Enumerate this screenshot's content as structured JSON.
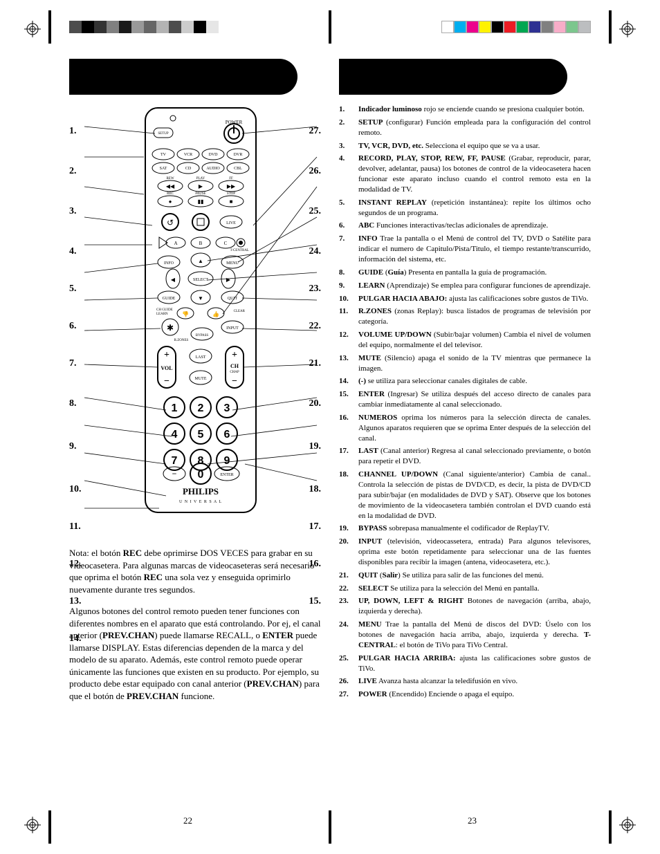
{
  "reg_colors_left": [
    "#4d4d4d",
    "#000000",
    "#333333",
    "#808080",
    "#1a1a1a",
    "#999999",
    "#666666",
    "#b3b3b3",
    "#4d4d4d",
    "#cccccc",
    "#000000",
    "#e6e6e6"
  ],
  "reg_colors_right": [
    "#ffffff",
    "#00aeef",
    "#ec008c",
    "#fff200",
    "#000000",
    "#ed1c24",
    "#00a651",
    "#2e3192",
    "#808080",
    "#f7adc8",
    "#7cc68d",
    "#bcbec0"
  ],
  "left_numbers": [
    "1.",
    "2.",
    "3.",
    "4.",
    "5.",
    "6.",
    "7.",
    "8.",
    "9.",
    "10.",
    "11.",
    "12.",
    "13.",
    "14."
  ],
  "left_gaps": [
    26,
    44,
    44,
    44,
    40,
    40,
    40,
    44,
    48,
    48,
    40,
    40,
    40,
    40
  ],
  "right_numbers": [
    "27.",
    "26.",
    "25.",
    "24.",
    "23.",
    "22.",
    "21.",
    "20.",
    "19.",
    "18.",
    "17.",
    "16.",
    "15."
  ],
  "right_gaps": [
    26,
    44,
    44,
    44,
    40,
    40,
    40,
    44,
    48,
    48,
    40,
    40,
    40
  ],
  "remote": {
    "brand": "PHILIPS",
    "sub": "U N I V E R S A L",
    "power": "POWER",
    "row2": [
      "TV",
      "VCR",
      "DVD",
      "DVR"
    ],
    "row3": [
      "SAT",
      "CD",
      "AUDIO",
      "CBL"
    ],
    "trans_top": [
      "REW",
      "PLAY",
      "FF"
    ],
    "trans_bot": [
      "REC",
      "PAUSE",
      "STOP"
    ],
    "replay_row": [
      "↺",
      "■",
      "LIVE"
    ],
    "abc_row": [
      "A",
      "B",
      "C"
    ],
    "tcentral": "T-CENTRAL",
    "info": "INFO",
    "menu": "MENU",
    "select": "SELECT",
    "guide": "GUIDE",
    "learn": "LEARN",
    "chguide": "CH GUIDE",
    "quit": "QUIT",
    "clear": "CLEAR",
    "rzones": "R.ZONES",
    "bypass": "BYPASS",
    "input": "INPUT",
    "vol": "VOL",
    "ch": "CH",
    "chap": "CHAP",
    "last": "LAST",
    "mute": "MUTE",
    "enter": "ENTER"
  },
  "note1_html": "Nota: el botón <b>REC</b> debe oprimirse DOS VECES para grabar en su videocasetera. Para algunas marcas de videocaseteras será necesario que oprima el botón <b>REC</b> una sola vez y enseguida oprimirlo nuevamente durante tres segundos.",
  "note2_html": "Algunos botones del control remoto pueden tener funciones con diferentes nombres en el aparato que está controlando. Por ej, el canal anterior (<b>PREV.CHAN</b>) puede llamarse RECALL, o <b>ENTER</b> puede llamarse DISPLAY. Estas diferencias dependen de la marca y del modelo de su aparato. Además, este control remoto puede operar únicamente las funciones que existen en su producto. Por ejemplo, su producto debe estar equipado con canal anterior (<b>PREV.CHAN</b>) para que el botón de <b>PREV.CHAN</b> funcione.",
  "descriptions": [
    {
      "n": "1.",
      "html": "<b>Indicador luminoso</b> rojo se enciende cuando se presiona cualquier botón."
    },
    {
      "n": "2.",
      "html": "<b>SETUP</b> (configurar) Función empleada para la configuración del control remoto."
    },
    {
      "n": "3.",
      "html": "<b>TV, VCR, DVD, etc.</b>  Selecciona el equipo que se va a usar."
    },
    {
      "n": "4.",
      "html": "<b>RECORD, PLAY, STOP, REW, FF, PAUSE</b> (Grabar, reproducir, parar, devolver, adelantar, pausa) los botones de control de la videocasetera hacen funcionar este aparato incluso cuando el control remoto esta en la modalidad de TV."
    },
    {
      "n": "5.",
      "html": "<b>INSTANT REPLAY</b> (repetición instantánea): repite los últimos ocho segundos de un programa."
    },
    {
      "n": "6.",
      "html": "<b>ABC</b> Funciones interactivas/teclas adicionales de aprendizaje."
    },
    {
      "n": "7.",
      "html": "<b>INFO</b> Trae la pantalla o el Menú de control del TV, DVD o Satélite para indicar el numero de Capitulo/Pista/Titulo, el tiempo restante/transcurrido, información del sistema, etc."
    },
    {
      "n": "8.",
      "html": "<b>GUIDE</b> (<b>Guía</b>) Presenta en pantalla la guía de programación."
    },
    {
      "n": "9.",
      "html": "<b>LEARN</b> (Aprendizaje) Se emplea para configurar funciones de aprendizaje."
    },
    {
      "n": "10.",
      "html": "<b>PULGAR HACIA ABAJO:</b> ajusta las calificaciones sobre gustos de TiVo."
    },
    {
      "n": "11.",
      "html": "<b>R.ZONES</b> (zonas Replay): busca listados de programas de televisión por categoría."
    },
    {
      "n": "12.",
      "html": "<b>VOLUME UP/DOWN</b> (Subir/bajar volumen) Cambia el nivel de volumen del equipo, normalmente el del televisor."
    },
    {
      "n": "13.",
      "html": "<b>MUTE</b> (Silencio) apaga el sonido de la TV mientras que permanece la imagen."
    },
    {
      "n": "14.",
      "html": "<b>(-)</b> se utiliza para seleccionar canales digitales de cable."
    },
    {
      "n": "15.",
      "html": "<b>ENTER</b> (Ingresar) Se utiliza después del acceso directo de canales para cambiar inmediatamente al canal seleccionado."
    },
    {
      "n": "16.",
      "html": "<b>NUMEROS</b> oprima los números para la selección directa de canales. Algunos aparatos requieren que se oprima Enter después de la selección del canal."
    },
    {
      "n": "17.",
      "html": "<b>LAST</b> (Canal anterior) Regresa al canal seleccionado previamente, o botón para repetir el DVD."
    },
    {
      "n": "18.",
      "html": "<b>CHANNEL UP/DOWN</b> (Canal siguiente/anterior) Cambia de canal.. Controla la selección de pistas de DVD/CD, es decir, la pista de DVD/CD para subir/bajar (en modalidades de DVD y SAT).  Observe que los botones de movimiento de la videocasetera también controlan el DVD cuando está en la modalidad de DVD."
    },
    {
      "n": "19.",
      "html": "<b>BYPASS</b> sobrepasa manualmente el codificador de ReplayTV."
    },
    {
      "n": "20.",
      "html": "<b>INPUT</b> (televisión, videocassetera, entrada) Para algunos televisores, oprima este botón repetidamente para seleccionar una de las fuentes disponibles para recibir la imagen (antena, videocasetera, etc.)."
    },
    {
      "n": "21.",
      "html": "<b>QUIT</b> (<b>Salir</b>) Se utiliza para salir de las funciones del menú."
    },
    {
      "n": "22.",
      "html": "<b>SELECT</b> Se utiliza para la selección del Menú en pantalla."
    },
    {
      "n": "23.",
      "html": "<b>UP, DOWN, LEFT &amp; RIGHT</b> Botones de navegación (arriba, abajo, izquierda y derecha)."
    },
    {
      "n": "24.",
      "html": "<b>MENU</b> Trae la pantalla del Menú de discos del DVD: Úselo con los botones de navegación hacia arriba, abajo, izquierda y derecha. <b>T-CENTRAL</b>: el botón de TiVo para TiVo Central."
    },
    {
      "n": "25.",
      "html": "<b>PULGAR HACIA ARRIBA:</b> ajusta las calificaciones sobre gustos de TiVo."
    },
    {
      "n": "26.",
      "html": "<b>LIVE</b>  Avanza hasta alcanzar la teledifusión en vivo."
    },
    {
      "n": "27.",
      "html": "<b>POWER</b> (Encendido) Enciende o apaga el equipo."
    }
  ],
  "page_left": "22",
  "page_right": "23"
}
